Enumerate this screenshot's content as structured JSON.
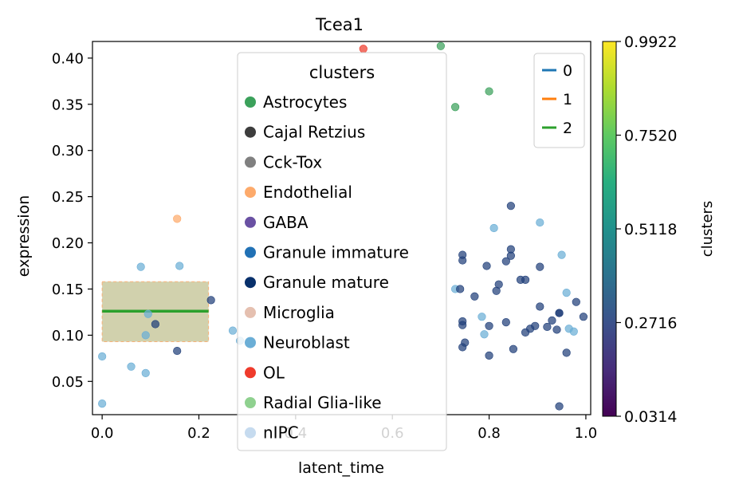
{
  "chart_data": {
    "type": "scatter",
    "title": "Tcea1",
    "xlabel": "latent_time",
    "ylabel": "expression",
    "xlim": [
      -0.02,
      1.01
    ],
    "ylim": [
      0.014,
      0.418
    ],
    "xticks": [
      "0.0",
      "0.2",
      "0.4",
      "0.6",
      "0.8",
      "1.0"
    ],
    "xtick_values": [
      0.0,
      0.2,
      0.4,
      0.6,
      0.8,
      1.0
    ],
    "yticks": [
      "0.05",
      "0.10",
      "0.15",
      "0.20",
      "0.25",
      "0.30",
      "0.35",
      "0.40"
    ],
    "ytick_values": [
      0.05,
      0.1,
      0.15,
      0.2,
      0.25,
      0.3,
      0.35,
      0.4
    ],
    "grid": false,
    "cluster_legend": {
      "title": "clusters",
      "placement": "upper-center",
      "entries": [
        {
          "name": "Astrocytes",
          "color": "#3ba15b"
        },
        {
          "name": "Cajal Retzius",
          "color": "#3d3d3d"
        },
        {
          "name": "Cck-Tox",
          "color": "#808080"
        },
        {
          "name": "Endothelial",
          "color": "#fdaa6b"
        },
        {
          "name": "GABA",
          "color": "#6a51a3"
        },
        {
          "name": "Granule immature",
          "color": "#2171b5"
        },
        {
          "name": "Granule mature",
          "color": "#08306b"
        },
        {
          "name": "Microglia",
          "color": "#e5c0b0"
        },
        {
          "name": "Neuroblast",
          "color": "#6baed6"
        },
        {
          "name": "OL",
          "color": "#ef3b2c"
        },
        {
          "name": "Radial Glia-like",
          "color": "#8fd18f"
        },
        {
          "name": "nIPC",
          "color": "#c6dbef"
        }
      ]
    },
    "line_legend": {
      "placement": "top-right",
      "entries": [
        {
          "name": "0",
          "color": "#1f77b4"
        },
        {
          "name": "1",
          "color": "#ff7f0e"
        },
        {
          "name": "2",
          "color": "#2ca02c"
        }
      ]
    },
    "colorbar": {
      "label": "clusters",
      "ticks": [
        "0.0314",
        "0.2716",
        "0.5118",
        "0.7520",
        "0.9922"
      ],
      "tick_values": [
        0.0314,
        0.2716,
        0.5118,
        0.752,
        0.9922
      ],
      "range": [
        0.0314,
        0.9922
      ],
      "colormap": "viridis"
    },
    "fit": {
      "name": "2",
      "x": [
        0.0,
        0.22
      ],
      "y": 0.126,
      "band": [
        0.093,
        0.158
      ],
      "line_color": "#2ca02c",
      "band_color": "#9a9a4a"
    },
    "series": [
      {
        "cluster": "Neuroblast",
        "color": "#6baed6",
        "points": [
          [
            0.0,
            0.026
          ],
          [
            0.0,
            0.077
          ],
          [
            0.06,
            0.066
          ],
          [
            0.08,
            0.174
          ],
          [
            0.09,
            0.059
          ],
          [
            0.09,
            0.1
          ],
          [
            0.095,
            0.123
          ],
          [
            0.16,
            0.175
          ],
          [
            0.27,
            0.105
          ],
          [
            0.285,
            0.094
          ],
          [
            0.73,
            0.15
          ],
          [
            0.785,
            0.12
          ],
          [
            0.79,
            0.101
          ],
          [
            0.81,
            0.216
          ],
          [
            0.905,
            0.222
          ],
          [
            0.95,
            0.187
          ],
          [
            0.96,
            0.146
          ],
          [
            0.965,
            0.107
          ],
          [
            0.975,
            0.104
          ]
        ]
      },
      {
        "cluster": "Granule mature",
        "color": "#21407a",
        "points": [
          [
            0.11,
            0.112
          ],
          [
            0.155,
            0.083
          ],
          [
            0.225,
            0.138
          ],
          [
            0.74,
            0.15
          ],
          [
            0.745,
            0.181
          ],
          [
            0.745,
            0.187
          ],
          [
            0.745,
            0.115
          ],
          [
            0.745,
            0.111
          ],
          [
            0.745,
            0.087
          ],
          [
            0.75,
            0.092
          ],
          [
            0.77,
            0.142
          ],
          [
            0.795,
            0.175
          ],
          [
            0.8,
            0.078
          ],
          [
            0.8,
            0.11
          ],
          [
            0.815,
            0.148
          ],
          [
            0.82,
            0.155
          ],
          [
            0.835,
            0.18
          ],
          [
            0.835,
            0.114
          ],
          [
            0.845,
            0.24
          ],
          [
            0.845,
            0.193
          ],
          [
            0.845,
            0.186
          ],
          [
            0.85,
            0.085
          ],
          [
            0.865,
            0.16
          ],
          [
            0.875,
            0.16
          ],
          [
            0.875,
            0.103
          ],
          [
            0.885,
            0.107
          ],
          [
            0.895,
            0.11
          ],
          [
            0.905,
            0.174
          ],
          [
            0.905,
            0.131
          ],
          [
            0.92,
            0.109
          ],
          [
            0.93,
            0.116
          ],
          [
            0.94,
            0.106
          ],
          [
            0.945,
            0.124
          ],
          [
            0.945,
            0.124
          ],
          [
            0.945,
            0.023
          ],
          [
            0.96,
            0.081
          ],
          [
            0.98,
            0.136
          ],
          [
            0.995,
            0.12
          ]
        ]
      },
      {
        "cluster": "Endothelial",
        "color": "#fdaa6b",
        "points": [
          [
            0.155,
            0.226
          ]
        ]
      },
      {
        "cluster": "Radial Glia-like",
        "color": "#3ba15b",
        "points": [
          [
            0.7,
            0.413
          ],
          [
            0.73,
            0.347
          ],
          [
            0.8,
            0.364
          ]
        ]
      },
      {
        "cluster": "OL",
        "color": "#ef3b2c",
        "points": [
          [
            0.54,
            0.41
          ]
        ]
      }
    ]
  }
}
